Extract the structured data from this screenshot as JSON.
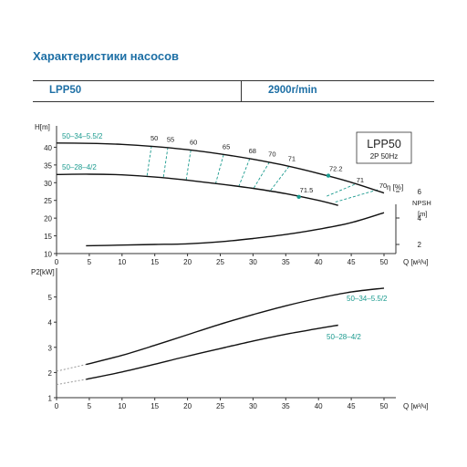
{
  "page": {
    "title": "Характеристики насосов",
    "model": "LPP50",
    "speed": "2900r/min"
  },
  "colors": {
    "accent": "#1d6fa5",
    "teal": "#1a9a8e",
    "curve": "#111111",
    "axis": "#333333"
  },
  "chart_data": [
    {
      "type": "line",
      "box_title": "LPP50",
      "box_subtitle": "2P  50Hz",
      "xlabel": "Q [м³/ч]",
      "xlim": [
        0,
        50
      ],
      "xticks": [
        0,
        5,
        10,
        15,
        20,
        25,
        30,
        35,
        40,
        45,
        50
      ],
      "grid": false,
      "axes": [
        {
          "id": "H",
          "label": "H[m]",
          "range": [
            10,
            45
          ],
          "ticks": [
            10,
            15,
            20,
            25,
            30,
            35,
            40
          ]
        },
        {
          "id": "NPSH",
          "label": "NPSH",
          "unit": "[m]",
          "range": [
            1,
            7
          ],
          "ticks": [
            2,
            4,
            6
          ]
        },
        {
          "id": "eta",
          "label": "η [%]"
        }
      ],
      "series": [
        {
          "name": "50–34–5.5/2",
          "axis": "H",
          "x": [
            0,
            5,
            10,
            15,
            20,
            25,
            30,
            35,
            40,
            45,
            50
          ],
          "y": [
            41.2,
            41.1,
            40.8,
            40.2,
            39.3,
            38.1,
            36.6,
            34.8,
            32.6,
            30.1,
            27.1
          ]
        },
        {
          "name": "50–28–4/2",
          "axis": "H",
          "x": [
            0,
            5,
            10,
            15,
            20,
            25,
            30,
            35,
            40,
            43
          ],
          "y": [
            32.3,
            32.4,
            32.2,
            31.6,
            30.7,
            29.6,
            28.4,
            26.9,
            25.0,
            23.6
          ]
        },
        {
          "name": "",
          "axis": "NPSH",
          "x": [
            4.5,
            10,
            15,
            20,
            25,
            30,
            35,
            40,
            45,
            50
          ],
          "y": [
            1.9,
            1.95,
            2.0,
            2.05,
            2.2,
            2.45,
            2.75,
            3.15,
            3.65,
            4.4
          ]
        }
      ],
      "efficiency_lines": [
        {
          "label": "50",
          "x1": 14.5,
          "y1": 40.4,
          "x2": 13.8,
          "y2": 31.8
        },
        {
          "label": "55",
          "x1": 17.0,
          "y1": 40.0,
          "x2": 16.3,
          "y2": 31.3
        },
        {
          "label": "60",
          "x1": 20.5,
          "y1": 39.2,
          "x2": 19.8,
          "y2": 30.8
        },
        {
          "label": "65",
          "x1": 25.5,
          "y1": 37.9,
          "x2": 24.3,
          "y2": 29.8
        },
        {
          "label": "68",
          "x1": 29.5,
          "y1": 36.8,
          "x2": 27.8,
          "y2": 28.8
        },
        {
          "label": "70",
          "x1": 32.5,
          "y1": 35.8,
          "x2": 30.0,
          "y2": 28.1
        },
        {
          "label": "71",
          "x1": 35.5,
          "y1": 34.6,
          "x2": 32.5,
          "y2": 27.4
        }
      ],
      "points": [
        {
          "label": "72.2",
          "x": 41.5,
          "y": 32.0
        },
        {
          "label": "71.5",
          "x": 37.0,
          "y": 26.0
        }
      ],
      "right_labels": [
        {
          "label": "71",
          "x": 45.5,
          "y": 29.5,
          "tx": 41.0,
          "ty": 26.0
        },
        {
          "label": "70",
          "x": 49.0,
          "y": 28.0,
          "tx": 42.5,
          "ty": 24.5
        }
      ]
    },
    {
      "type": "line",
      "ylabel": "P2[kW]",
      "xlabel": "Q [м³/ч]",
      "xlim": [
        0,
        50
      ],
      "ylim": [
        1,
        6
      ],
      "xticks": [
        0,
        5,
        10,
        15,
        20,
        25,
        30,
        35,
        40,
        45,
        50
      ],
      "yticks": [
        1,
        2,
        3,
        4,
        5
      ],
      "grid": false,
      "series": [
        {
          "name": "50–34–5.5/2",
          "x": [
            0,
            4.5,
            10,
            15,
            20,
            25,
            30,
            35,
            40,
            45,
            50
          ],
          "y": [
            2.05,
            2.32,
            2.68,
            3.08,
            3.5,
            3.92,
            4.3,
            4.65,
            4.95,
            5.2,
            5.35
          ]
        },
        {
          "name": "50–28–4/2",
          "x": [
            0,
            4.5,
            10,
            15,
            20,
            25,
            30,
            35,
            40,
            43
          ],
          "y": [
            1.52,
            1.73,
            2.02,
            2.33,
            2.65,
            2.95,
            3.25,
            3.52,
            3.75,
            3.88
          ]
        }
      ]
    }
  ]
}
